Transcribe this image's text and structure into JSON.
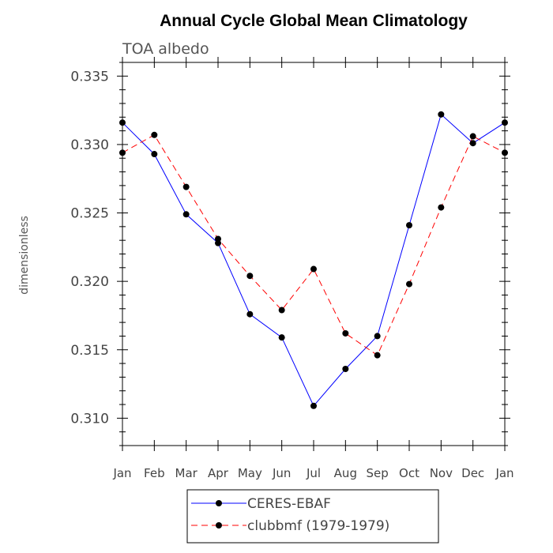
{
  "chart_data": {
    "type": "line",
    "title": "Annual Cycle Global Mean Climatology",
    "subtitle": "TOA albedo",
    "ylabel": "dimensionless",
    "xlabel": "",
    "categories": [
      "Jan",
      "Feb",
      "Mar",
      "Apr",
      "May",
      "Jun",
      "Jul",
      "Aug",
      "Sep",
      "Oct",
      "Nov",
      "Dec",
      "Jan"
    ],
    "ylim": [
      0.308,
      0.336
    ],
    "yticks": [
      "0.310",
      "0.315",
      "0.320",
      "0.325",
      "0.330",
      "0.335"
    ],
    "grid": false,
    "legend_position": "bottom",
    "series": [
      {
        "name": "CERES-EBAF",
        "color": "#0000ff",
        "dash": "solid",
        "marker": "dot",
        "values": [
          0.3316,
          0.3293,
          0.3249,
          0.3228,
          0.3176,
          0.3159,
          0.3109,
          0.3136,
          0.316,
          0.3241,
          0.3322,
          0.3301,
          0.3316
        ]
      },
      {
        "name": "clubbmf (1979-1979)",
        "color": "#ff0000",
        "dash": "dashed",
        "marker": "dot",
        "values": [
          0.3294,
          0.3307,
          0.3269,
          0.3231,
          0.3204,
          0.3179,
          0.3209,
          0.3162,
          0.3146,
          0.3198,
          0.3254,
          0.3306,
          0.3294
        ]
      }
    ]
  }
}
